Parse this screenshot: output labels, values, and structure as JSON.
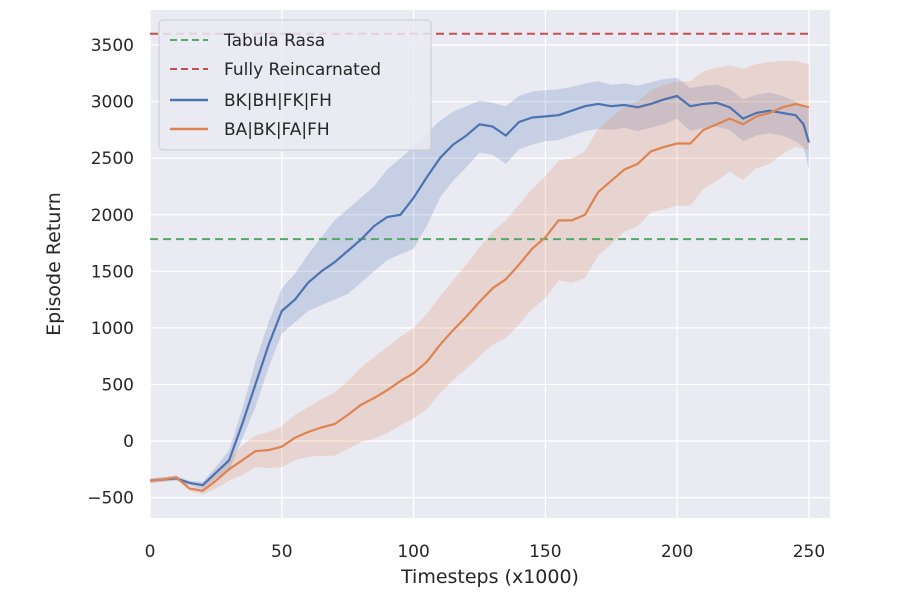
{
  "chart_data": {
    "type": "line",
    "xlabel": "Timesteps (x1000)",
    "ylabel": "Episode Return",
    "xlim": [
      0,
      258
    ],
    "ylim": [
      -680,
      3810
    ],
    "xticks": [
      0,
      50,
      100,
      150,
      200,
      250
    ],
    "yticks": [
      -500,
      0,
      500,
      1000,
      1500,
      2000,
      2500,
      3000,
      3500
    ],
    "grid": true,
    "legend_position": "top-left",
    "reference_lines": [
      {
        "name": "Tabula Rasa",
        "y": 1785,
        "color": "#55a868",
        "style": "dashed"
      },
      {
        "name": "Fully Reincarnated",
        "y": 3600,
        "color": "#c44e52",
        "style": "dashed"
      }
    ],
    "series": [
      {
        "name": "BK|BH|FK|FH",
        "color": "#4c72b0",
        "x": [
          0,
          5,
          10,
          15,
          20,
          25,
          30,
          35,
          40,
          45,
          50,
          55,
          60,
          65,
          70,
          75,
          80,
          85,
          90,
          95,
          100,
          105,
          110,
          115,
          120,
          125,
          130,
          135,
          140,
          145,
          150,
          155,
          160,
          165,
          170,
          175,
          180,
          185,
          190,
          195,
          200,
          205,
          210,
          215,
          220,
          225,
          230,
          235,
          240,
          245,
          248,
          250
        ],
        "y": [
          -350,
          -340,
          -330,
          -370,
          -390,
          -280,
          -170,
          150,
          500,
          850,
          1150,
          1250,
          1400,
          1500,
          1580,
          1680,
          1780,
          1900,
          1980,
          2000,
          2150,
          2330,
          2500,
          2620,
          2700,
          2800,
          2780,
          2700,
          2820,
          2860,
          2870,
          2880,
          2920,
          2960,
          2980,
          2960,
          2970,
          2950,
          2980,
          3020,
          3050,
          2960,
          2980,
          2990,
          2950,
          2850,
          2900,
          2920,
          2900,
          2880,
          2800,
          2640
        ],
        "upper": [
          -330,
          -320,
          -310,
          -350,
          -360,
          -230,
          -80,
          280,
          700,
          1050,
          1350,
          1480,
          1650,
          1800,
          1950,
          2050,
          2150,
          2250,
          2400,
          2500,
          2600,
          2720,
          2830,
          2910,
          2960,
          3010,
          2990,
          2960,
          3050,
          3090,
          3100,
          3110,
          3130,
          3160,
          3180,
          3150,
          3160,
          3140,
          3170,
          3200,
          3210,
          3120,
          3140,
          3150,
          3110,
          3020,
          3060,
          3080,
          3050,
          3000,
          2950,
          2930
        ],
        "lower": [
          -370,
          -360,
          -350,
          -390,
          -420,
          -330,
          -260,
          20,
          300,
          650,
          950,
          1050,
          1150,
          1200,
          1250,
          1300,
          1400,
          1500,
          1600,
          1650,
          1700,
          1900,
          2150,
          2300,
          2420,
          2550,
          2530,
          2450,
          2580,
          2620,
          2650,
          2660,
          2700,
          2740,
          2760,
          2750,
          2770,
          2740,
          2770,
          2800,
          2850,
          2740,
          2770,
          2780,
          2750,
          2650,
          2700,
          2720,
          2700,
          2650,
          2600,
          2400
        ]
      },
      {
        "name": "BA|BK|FA|FH",
        "color": "#dd8452",
        "x": [
          0,
          5,
          10,
          15,
          20,
          25,
          30,
          35,
          40,
          45,
          50,
          55,
          60,
          65,
          70,
          75,
          80,
          85,
          90,
          95,
          100,
          105,
          110,
          115,
          120,
          125,
          130,
          135,
          140,
          145,
          150,
          155,
          160,
          165,
          170,
          175,
          180,
          185,
          190,
          195,
          200,
          205,
          210,
          215,
          220,
          225,
          230,
          235,
          240,
          245,
          250
        ],
        "y": [
          -350,
          -340,
          -320,
          -420,
          -440,
          -350,
          -250,
          -170,
          -90,
          -80,
          -50,
          30,
          80,
          120,
          150,
          230,
          320,
          380,
          450,
          530,
          600,
          700,
          850,
          980,
          1100,
          1230,
          1350,
          1430,
          1560,
          1700,
          1800,
          1950,
          1950,
          2000,
          2200,
          2300,
          2400,
          2450,
          2560,
          2600,
          2630,
          2630,
          2750,
          2800,
          2850,
          2800,
          2870,
          2900,
          2950,
          2980,
          2950
        ],
        "upper": [
          -330,
          -320,
          -300,
          -400,
          -410,
          -280,
          -150,
          -40,
          50,
          80,
          130,
          230,
          300,
          370,
          430,
          530,
          650,
          740,
          830,
          920,
          1000,
          1120,
          1280,
          1420,
          1560,
          1710,
          1850,
          1950,
          2090,
          2230,
          2340,
          2480,
          2500,
          2560,
          2760,
          2860,
          2950,
          3000,
          3100,
          3150,
          3180,
          3180,
          3270,
          3300,
          3320,
          3290,
          3330,
          3350,
          3360,
          3360,
          3330
        ],
        "lower": [
          -370,
          -360,
          -340,
          -440,
          -470,
          -420,
          -350,
          -300,
          -230,
          -240,
          -230,
          -170,
          -140,
          -130,
          -130,
          -70,
          -10,
          20,
          70,
          140,
          200,
          280,
          420,
          540,
          640,
          750,
          850,
          910,
          1030,
          1170,
          1260,
          1420,
          1400,
          1440,
          1640,
          1740,
          1850,
          1900,
          2020,
          2050,
          2080,
          2080,
          2230,
          2300,
          2380,
          2310,
          2410,
          2450,
          2540,
          2600,
          2570
        ]
      }
    ]
  }
}
